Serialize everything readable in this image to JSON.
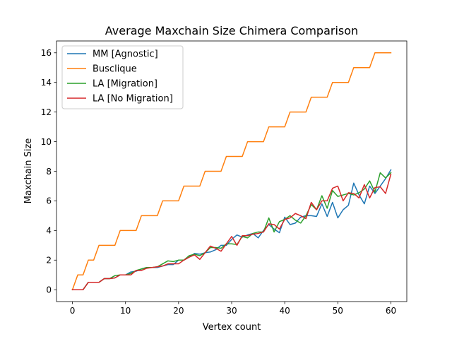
{
  "chart_data": {
    "type": "line",
    "title": "Average Maxchain Size Chimera Comparison",
    "xlabel": "Vertex count",
    "ylabel": "Maxchain Size",
    "xlim": [
      -3,
      63
    ],
    "ylim": [
      -0.8,
      16.8
    ],
    "xticks": [
      0,
      10,
      20,
      30,
      40,
      50,
      60
    ],
    "yticks": [
      0,
      2,
      4,
      6,
      8,
      10,
      12,
      14,
      16
    ],
    "legend_position": "upper-left",
    "grid": false,
    "x": [
      0,
      1,
      2,
      3,
      4,
      5,
      6,
      7,
      8,
      9,
      10,
      11,
      12,
      13,
      14,
      15,
      16,
      17,
      18,
      19,
      20,
      21,
      22,
      23,
      24,
      25,
      26,
      27,
      28,
      29,
      30,
      31,
      32,
      33,
      34,
      35,
      36,
      37,
      38,
      39,
      40,
      41,
      42,
      43,
      44,
      45,
      46,
      47,
      48,
      49,
      50,
      51,
      52,
      53,
      54,
      55,
      56,
      57,
      58,
      59,
      60
    ],
    "series": [
      {
        "name": "MM [Agnostic]",
        "color": "#1f77b4",
        "values": [
          0,
          0,
          0,
          0.5,
          0.5,
          0.5,
          0.75,
          0.75,
          0.8,
          1.0,
          1.0,
          1.2,
          1.25,
          1.4,
          1.5,
          1.5,
          1.5,
          1.6,
          1.7,
          1.7,
          2.0,
          2.0,
          2.2,
          2.45,
          2.4,
          2.5,
          2.55,
          2.7,
          3.0,
          3.0,
          3.4,
          3.7,
          3.55,
          3.7,
          3.8,
          3.5,
          4.0,
          4.4,
          4.1,
          3.85,
          4.9,
          4.4,
          4.5,
          4.9,
          5.0,
          5.0,
          4.95,
          5.8,
          4.95,
          5.9,
          4.85,
          5.4,
          5.7,
          7.2,
          6.4,
          5.8,
          7.0,
          6.5,
          7.0,
          7.5,
          8.1
        ]
      },
      {
        "name": "Busclique",
        "color": "#ff7f0e",
        "values": [
          0,
          1,
          1,
          2,
          2,
          3,
          3,
          3,
          3,
          4,
          4,
          4,
          4,
          5,
          5,
          5,
          5,
          6,
          6,
          6,
          6,
          7,
          7,
          7,
          7,
          8,
          8,
          8,
          8,
          9,
          9,
          9,
          9,
          10,
          10,
          10,
          10,
          11,
          11,
          11,
          11,
          12,
          12,
          12,
          12,
          13,
          13,
          13,
          13,
          14,
          14,
          14,
          14,
          15,
          15,
          15,
          15,
          16,
          16,
          16,
          16
        ]
      },
      {
        "name": "LA [Migration]",
        "color": "#2ca02c",
        "values": [
          0,
          0,
          0,
          0.5,
          0.5,
          0.5,
          0.75,
          0.75,
          0.95,
          1.0,
          1.0,
          1.1,
          1.3,
          1.4,
          1.5,
          1.5,
          1.55,
          1.75,
          1.95,
          1.9,
          2.0,
          2.0,
          2.3,
          2.4,
          2.3,
          2.5,
          2.85,
          2.85,
          2.8,
          3.1,
          3.1,
          3.05,
          3.6,
          3.5,
          3.8,
          3.9,
          3.9,
          4.85,
          3.9,
          4.6,
          4.75,
          5.0,
          4.7,
          4.5,
          5.0,
          5.75,
          5.4,
          6.35,
          5.5,
          6.7,
          6.3,
          6.4,
          6.5,
          6.4,
          6.55,
          6.8,
          7.35,
          6.6,
          7.9,
          7.55,
          7.9
        ]
      },
      {
        "name": "LA [No Migration]",
        "color": "#d62728",
        "values": [
          0,
          0,
          0,
          0.5,
          0.5,
          0.5,
          0.75,
          0.75,
          0.8,
          1.0,
          1.0,
          1.0,
          1.3,
          1.3,
          1.45,
          1.5,
          1.55,
          1.6,
          1.75,
          1.75,
          1.75,
          2.0,
          2.2,
          2.35,
          2.05,
          2.5,
          2.95,
          2.8,
          2.6,
          3.1,
          3.6,
          3.0,
          3.65,
          3.65,
          3.75,
          3.8,
          3.9,
          4.45,
          4.4,
          4.1,
          4.75,
          4.85,
          5.15,
          5.0,
          4.8,
          5.9,
          5.4,
          6.0,
          6.0,
          6.85,
          7.0,
          6.0,
          6.55,
          6.5,
          6.2,
          7.1,
          6.2,
          6.9,
          6.95,
          6.5,
          7.8
        ]
      }
    ]
  }
}
